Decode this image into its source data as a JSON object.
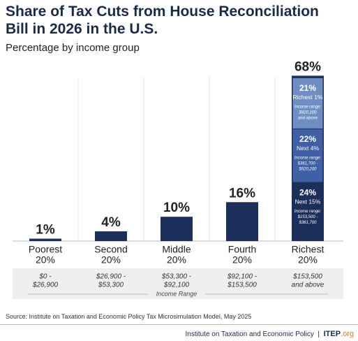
{
  "chart_data": {
    "type": "bar",
    "title": "Share of Tax Cuts from House Reconciliation Bill in 2026 in the U.S.",
    "subtitle": "Percentage by income group",
    "categories": [
      "Poorest",
      "Second",
      "Middle",
      "Fourth",
      "Richest"
    ],
    "category_sublabels": [
      "20%",
      "20%",
      "20%",
      "20%",
      "20%"
    ],
    "values": [
      1,
      4,
      10,
      16,
      68
    ],
    "value_labels": [
      "1%",
      "4%",
      "10%",
      "16%",
      "68%"
    ],
    "color": "#1c2e5a",
    "income_ranges": [
      [
        "$0 -",
        "$26,900"
      ],
      [
        "$26,900 -",
        "$53,300"
      ],
      [
        "$53,300 -",
        "$92,100"
      ],
      [
        "$92,100 -",
        "$153,500"
      ],
      [
        "$153,500",
        "and above"
      ]
    ],
    "income_range_label": "Income Range",
    "stack": {
      "names": [
        "Next 15%",
        "Next 4%",
        "Richest 1%"
      ],
      "values": [
        24,
        22,
        21
      ],
      "value_labels": [
        "24%",
        "22%",
        "21%"
      ],
      "notes": [
        [
          "Income range:",
          "$153,500 -",
          "$361,700"
        ],
        [
          "Income range:",
          "$361,700 -",
          "$920,200"
        ],
        [
          "Income range:",
          "$920,200",
          "and above"
        ]
      ],
      "colors": [
        "#1c2e5a",
        "#3f60a4",
        "#6f8fc4"
      ]
    },
    "source": "Source: Institute on Taxation and Economic Policy Tax Microsimulation Model, May 2025",
    "org_name": "Institute on Taxation and Economic Policy",
    "logo": "ITEP",
    "logo_suffix": ".org"
  }
}
